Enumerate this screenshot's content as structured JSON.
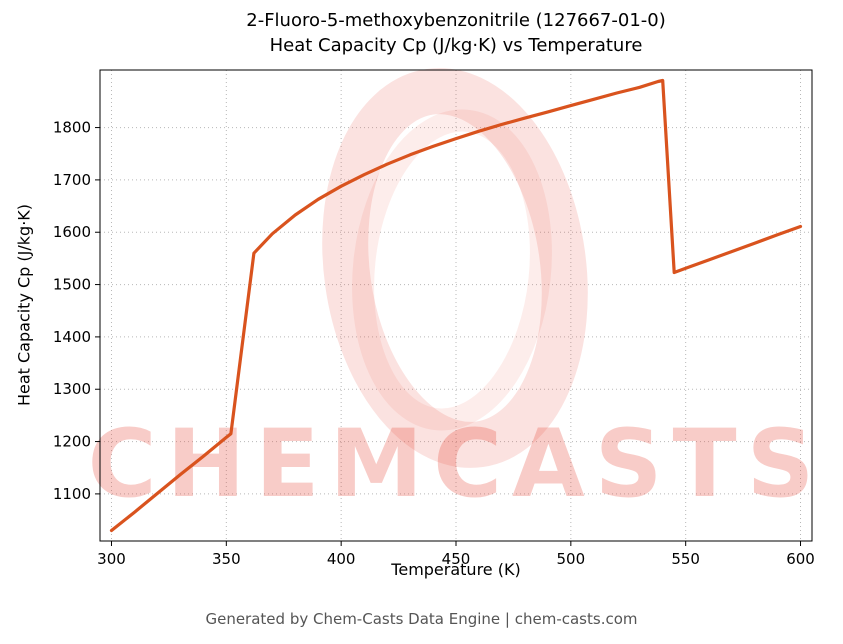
{
  "header": {
    "title_line1": "2-Fluoro-5-methoxybenzonitrile (127667-01-0)",
    "title_line2": "Heat Capacity Cp (J/kg·K) vs Temperature"
  },
  "chart_data": {
    "type": "line",
    "title": "2-Fluoro-5-methoxybenzonitrile (127667-01-0)\nHeat Capacity Cp (J/kg·K) vs Temperature",
    "xlabel": "Temperature (K)",
    "ylabel": "Heat Capacity Cp (J/kg·K)",
    "xlim": [
      295,
      605
    ],
    "ylim": [
      1010,
      1910
    ],
    "xticks": [
      300,
      350,
      400,
      450,
      500,
      550,
      600
    ],
    "yticks": [
      1100,
      1200,
      1300,
      1400,
      1500,
      1600,
      1700,
      1800
    ],
    "grid": true,
    "grid_style": "dotted",
    "line_color": "#d9531e",
    "series": [
      {
        "name": "Heat Capacity Cp",
        "x": [
          300,
          310,
          320,
          330,
          340,
          350,
          352,
          362,
          370,
          380,
          390,
          400,
          410,
          420,
          430,
          440,
          450,
          460,
          470,
          480,
          490,
          500,
          510,
          520,
          530,
          538,
          540,
          545,
          550,
          560,
          570,
          580,
          590,
          600
        ],
        "y": [
          1030,
          1065,
          1101,
          1137,
          1172,
          1208,
          1215,
          1560,
          1597,
          1633,
          1663,
          1688,
          1710,
          1730,
          1748,
          1764,
          1779,
          1793,
          1806,
          1818,
          1830,
          1842,
          1854,
          1866,
          1877,
          1888,
          1890,
          1523,
          1531,
          1547,
          1563,
          1579,
          1595,
          1611
        ]
      }
    ],
    "annotations": {
      "phase_transition_1_K": 357,
      "phase_transition_2_K": 540
    }
  },
  "watermark": {
    "text": "CHEMCASTS",
    "color": "#e74c3c"
  },
  "footer": {
    "text": "Generated by Chem-Casts Data Engine | chem-casts.com"
  }
}
